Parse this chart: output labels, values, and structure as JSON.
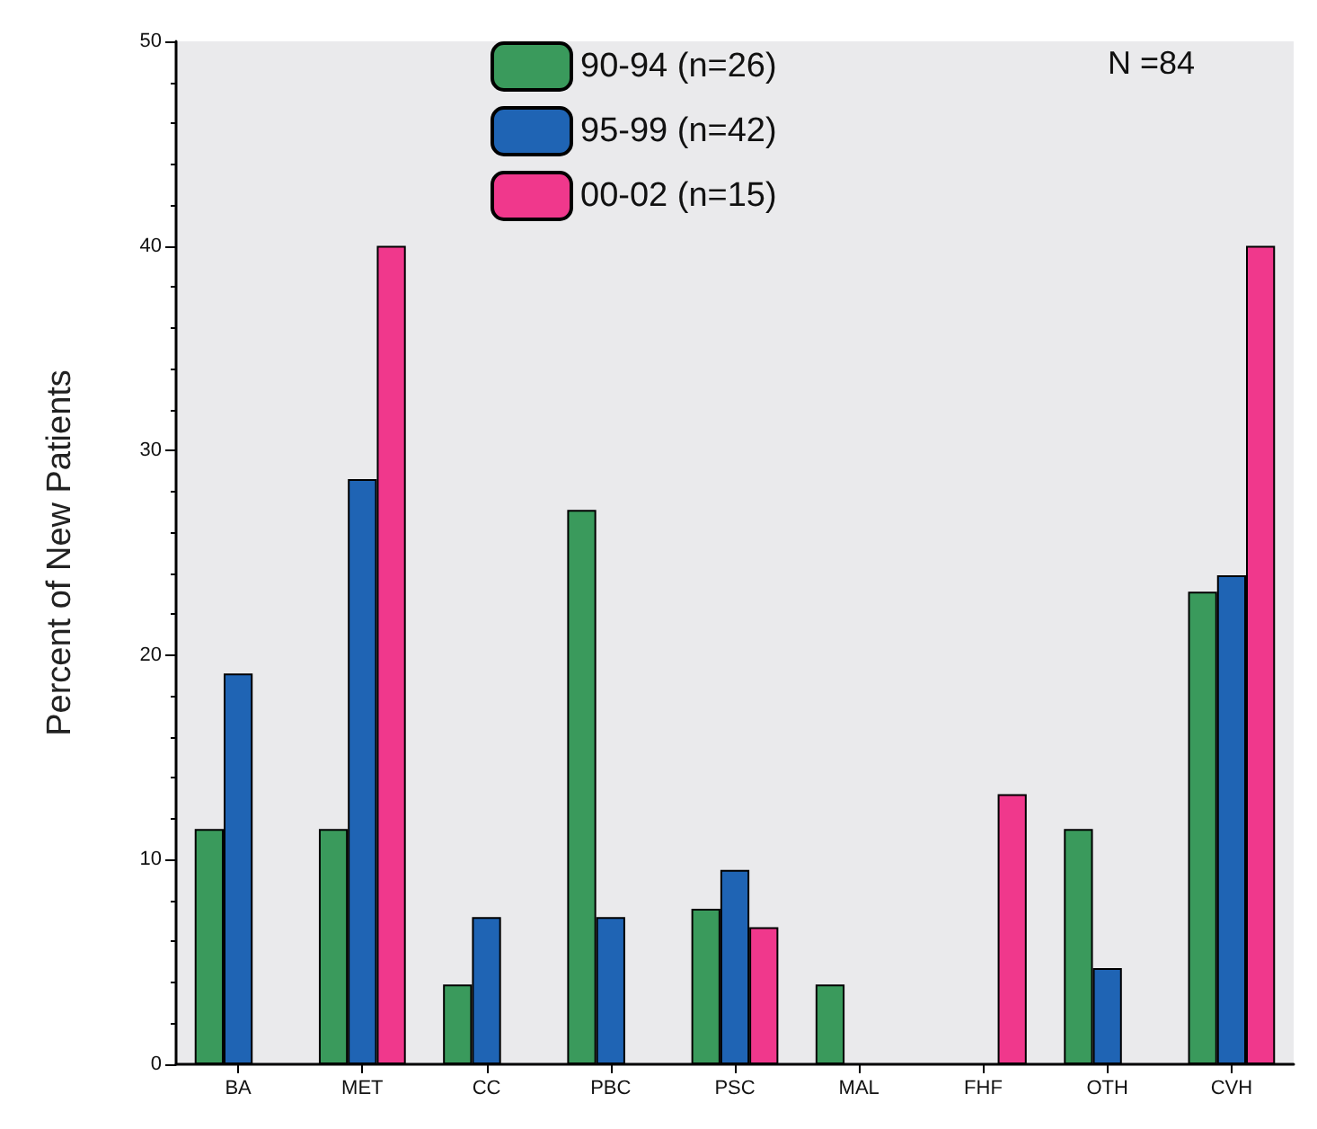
{
  "chart_data": {
    "type": "bar",
    "ylabel": "Percent of New Patients",
    "categories": [
      "BA",
      "MET",
      "CC",
      "PBC",
      "PSC",
      "MAL",
      "FHF",
      "OTH",
      "CVH"
    ],
    "series": [
      {
        "name": "90-94 (n=26)",
        "color": "#3a9a5c",
        "values": [
          11.5,
          11.5,
          3.9,
          27.1,
          7.6,
          3.9,
          null,
          11.5,
          23.1
        ]
      },
      {
        "name": "95-99 (n=42)",
        "color": "#1f64b4",
        "values": [
          19.1,
          28.6,
          7.2,
          7.2,
          9.5,
          null,
          null,
          4.7,
          23.9
        ]
      },
      {
        "name": "00-02 (n=15)",
        "color": "#f0388c",
        "values": [
          null,
          40.0,
          null,
          null,
          6.7,
          null,
          13.2,
          null,
          40.0
        ]
      }
    ],
    "ylim": [
      0,
      50
    ],
    "yticks": [
      0,
      10,
      20,
      30,
      40,
      50
    ],
    "grid": false,
    "legend": "top",
    "annotations": [
      "N =84"
    ]
  }
}
